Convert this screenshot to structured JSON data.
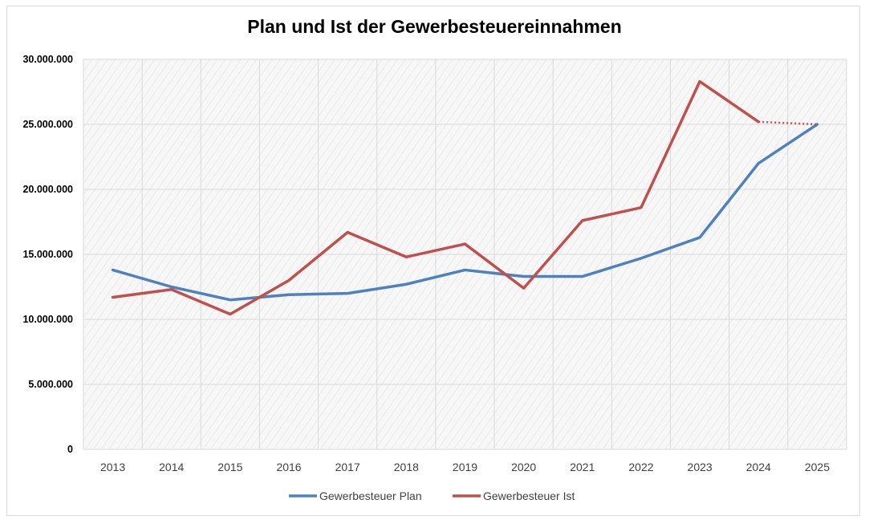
{
  "chart_data": {
    "type": "line",
    "title": "Plan und Ist der Gewerbesteuereinnahmen",
    "xlabel": "",
    "ylabel": "",
    "categories": [
      "2013",
      "2014",
      "2015",
      "2016",
      "2017",
      "2018",
      "2019",
      "2020",
      "2021",
      "2022",
      "2023",
      "2024",
      "2025"
    ],
    "ylim": [
      0,
      30000000
    ],
    "yticks": [
      0,
      5000000,
      10000000,
      15000000,
      20000000,
      25000000,
      30000000
    ],
    "ytick_labels": [
      "0",
      "5.000.000",
      "10.000.000",
      "15.000.000",
      "20.000.000",
      "25.000.000",
      "30.000.000"
    ],
    "grid": true,
    "legend_position": "bottom",
    "series": [
      {
        "name": "Gewerbesteuer Plan",
        "color": "#4f81bd",
        "values": [
          13800000,
          12500000,
          11500000,
          11900000,
          12000000,
          12700000,
          13800000,
          13300000,
          13300000,
          14700000,
          16300000,
          22000000,
          25000000
        ]
      },
      {
        "name": "Gewerbesteuer Ist",
        "color": "#c0504d",
        "values": [
          11700000,
          12300000,
          10400000,
          13000000,
          16700000,
          14800000,
          15800000,
          12400000,
          17600000,
          18600000,
          28300000,
          25200000,
          25000000
        ],
        "dotted_from_index": 11
      }
    ]
  }
}
